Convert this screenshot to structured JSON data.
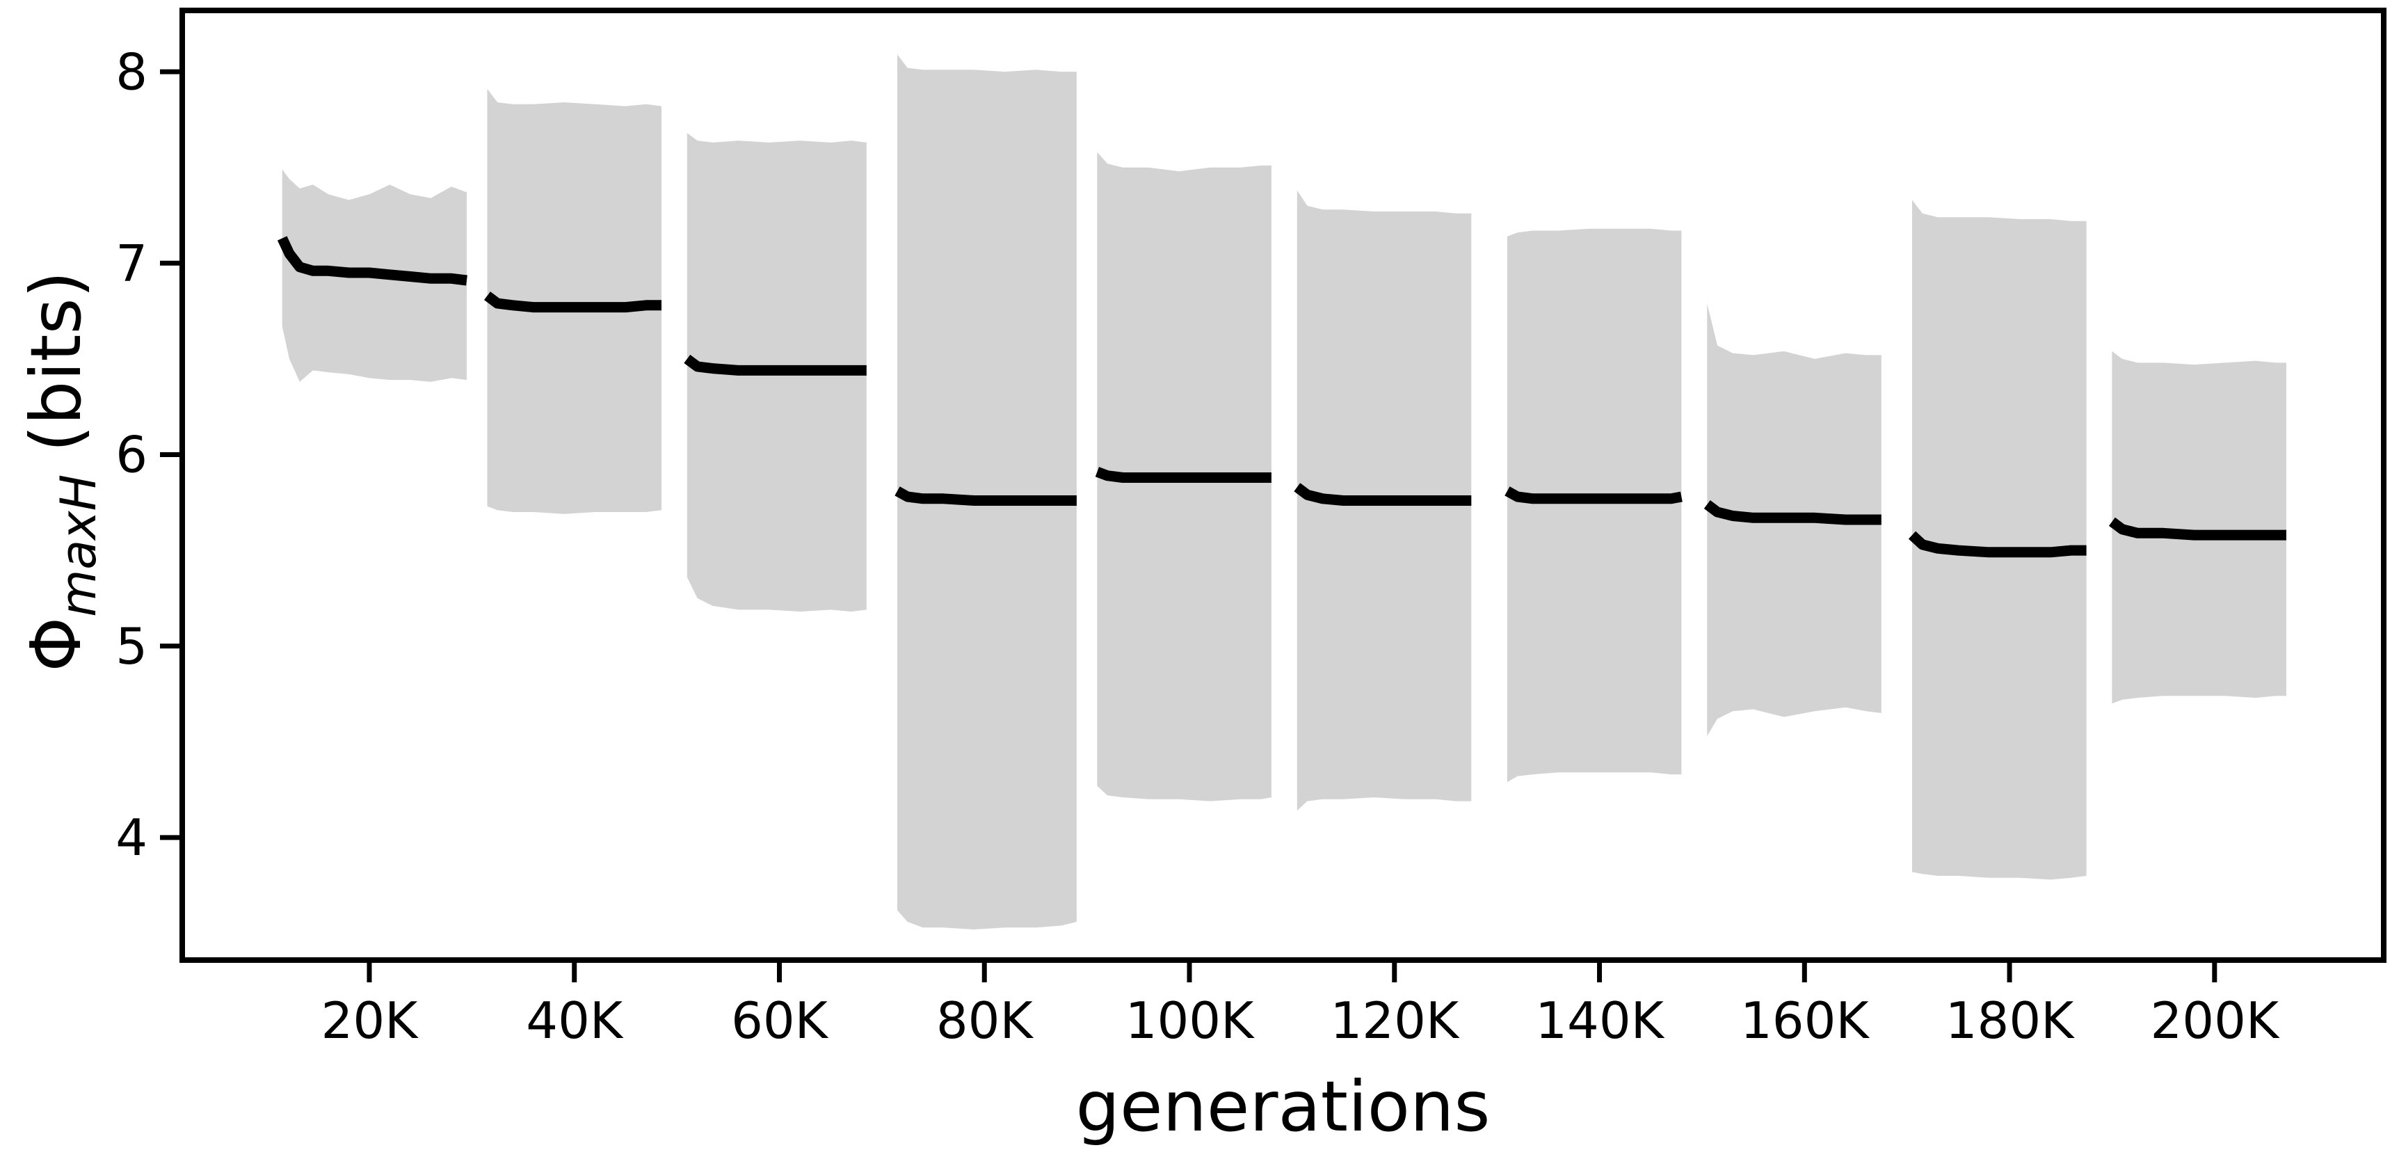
{
  "figure": {
    "background_color": "#ffffff"
  },
  "chart_data": {
    "type": "area",
    "title": "",
    "xlabel": "generations",
    "ylabel": {
      "prefix": "Φ",
      "subscript": "maxH",
      "suffix": " (bits)"
    },
    "legend": null,
    "grid": false,
    "band_color": "#d3d3d3",
    "line_color": "#000000",
    "axis_color": "#000000",
    "x_unit_note": "x values in thousands of generations",
    "xlim": [
      1.75,
      216.5
    ],
    "ylim": [
      3.36,
      8.32
    ],
    "x_ticks": [
      {
        "label": "20K",
        "value": 20
      },
      {
        "label": "40K",
        "value": 40
      },
      {
        "label": "60K",
        "value": 60
      },
      {
        "label": "80K",
        "value": 80
      },
      {
        "label": "100K",
        "value": 100
      },
      {
        "label": "120K",
        "value": 120
      },
      {
        "label": "140K",
        "value": 140
      },
      {
        "label": "160K",
        "value": 160
      },
      {
        "label": "180K",
        "value": 180
      },
      {
        "label": "200K",
        "value": 200
      }
    ],
    "y_ticks": [
      {
        "label": "4",
        "value": 4
      },
      {
        "label": "5",
        "value": 5
      },
      {
        "label": "6",
        "value": 6
      },
      {
        "label": "7",
        "value": 7
      },
      {
        "label": "8",
        "value": 8
      }
    ],
    "segments": [
      {
        "name": "band-20K",
        "x": [
          11.5,
          12.2,
          13.2,
          14.5,
          16,
          18,
          20,
          22,
          24,
          26,
          28,
          29.5
        ],
        "upper": [
          7.49,
          7.44,
          7.39,
          7.41,
          7.36,
          7.33,
          7.36,
          7.41,
          7.36,
          7.34,
          7.4,
          7.37
        ],
        "lower": [
          6.67,
          6.5,
          6.38,
          6.44,
          6.43,
          6.42,
          6.4,
          6.39,
          6.39,
          6.38,
          6.4,
          6.39
        ],
        "line": [
          7.13,
          7.05,
          6.98,
          6.96,
          6.96,
          6.95,
          6.95,
          6.94,
          6.93,
          6.92,
          6.92,
          6.91
        ]
      },
      {
        "name": "band-40K",
        "x": [
          31.5,
          32.5,
          34,
          36,
          39,
          42,
          45,
          47,
          48.5
        ],
        "upper": [
          7.91,
          7.84,
          7.83,
          7.83,
          7.84,
          7.83,
          7.82,
          7.83,
          7.82
        ],
        "lower": [
          5.73,
          5.71,
          5.7,
          5.7,
          5.69,
          5.7,
          5.7,
          5.7,
          5.71
        ],
        "line": [
          6.83,
          6.79,
          6.78,
          6.77,
          6.77,
          6.77,
          6.77,
          6.78,
          6.78
        ]
      },
      {
        "name": "band-60K",
        "x": [
          51,
          52,
          53.5,
          56,
          59,
          62,
          65,
          67,
          68.5
        ],
        "upper": [
          7.68,
          7.64,
          7.63,
          7.64,
          7.63,
          7.64,
          7.63,
          7.64,
          7.63
        ],
        "lower": [
          5.36,
          5.25,
          5.21,
          5.19,
          5.19,
          5.18,
          5.19,
          5.18,
          5.19
        ],
        "line": [
          6.5,
          6.46,
          6.45,
          6.44,
          6.44,
          6.44,
          6.44,
          6.44,
          6.44
        ]
      },
      {
        "name": "band-80K",
        "x": [
          71.5,
          72.5,
          74,
          76,
          79,
          82,
          85,
          87.5,
          89
        ],
        "upper": [
          8.09,
          8.02,
          8.01,
          8.01,
          8.01,
          8.0,
          8.01,
          8.0,
          8.0
        ],
        "lower": [
          3.62,
          3.56,
          3.53,
          3.53,
          3.52,
          3.53,
          3.53,
          3.54,
          3.56
        ],
        "line": [
          5.81,
          5.78,
          5.77,
          5.77,
          5.76,
          5.76,
          5.76,
          5.76,
          5.76
        ]
      },
      {
        "name": "band-100K",
        "x": [
          91,
          92,
          93.5,
          96,
          99,
          102,
          105,
          107,
          108
        ],
        "upper": [
          7.58,
          7.52,
          7.5,
          7.5,
          7.48,
          7.5,
          7.5,
          7.51,
          7.51
        ],
        "lower": [
          4.27,
          4.22,
          4.21,
          4.2,
          4.2,
          4.19,
          4.2,
          4.2,
          4.21
        ],
        "line": [
          5.91,
          5.89,
          5.88,
          5.88,
          5.88,
          5.88,
          5.88,
          5.88,
          5.88
        ]
      },
      {
        "name": "band-120K",
        "x": [
          110.5,
          111.5,
          113,
          115,
          118,
          121,
          124,
          126,
          127.5
        ],
        "upper": [
          7.38,
          7.3,
          7.28,
          7.28,
          7.27,
          7.27,
          7.27,
          7.26,
          7.26
        ],
        "lower": [
          4.14,
          4.19,
          4.2,
          4.2,
          4.21,
          4.2,
          4.2,
          4.19,
          4.19
        ],
        "line": [
          5.83,
          5.79,
          5.77,
          5.76,
          5.76,
          5.76,
          5.76,
          5.76,
          5.76
        ]
      },
      {
        "name": "band-140K",
        "x": [
          131,
          132,
          133.5,
          136,
          139,
          142,
          145,
          147,
          148
        ],
        "upper": [
          7.14,
          7.16,
          7.17,
          7.17,
          7.18,
          7.18,
          7.18,
          7.17,
          7.17
        ],
        "lower": [
          4.29,
          4.32,
          4.33,
          4.34,
          4.34,
          4.34,
          4.34,
          4.33,
          4.33
        ],
        "line": [
          5.81,
          5.78,
          5.77,
          5.77,
          5.77,
          5.77,
          5.77,
          5.77,
          5.78
        ]
      },
      {
        "name": "band-160K",
        "x": [
          150.5,
          151.5,
          153,
          155,
          158,
          161,
          164,
          166,
          167.5
        ],
        "upper": [
          6.79,
          6.57,
          6.53,
          6.52,
          6.54,
          6.5,
          6.53,
          6.52,
          6.52
        ],
        "lower": [
          4.53,
          4.62,
          4.66,
          4.67,
          4.63,
          4.66,
          4.68,
          4.66,
          4.65
        ],
        "line": [
          5.74,
          5.7,
          5.68,
          5.67,
          5.67,
          5.67,
          5.66,
          5.66,
          5.66
        ]
      },
      {
        "name": "band-180K",
        "x": [
          170.5,
          171.5,
          173,
          175,
          178,
          181,
          184,
          186,
          187.5
        ],
        "upper": [
          7.33,
          7.26,
          7.24,
          7.24,
          7.24,
          7.23,
          7.23,
          7.22,
          7.22
        ],
        "lower": [
          3.82,
          3.81,
          3.8,
          3.8,
          3.79,
          3.79,
          3.78,
          3.79,
          3.8
        ],
        "line": [
          5.58,
          5.53,
          5.51,
          5.5,
          5.49,
          5.49,
          5.49,
          5.5,
          5.5
        ]
      },
      {
        "name": "band-200K",
        "x": [
          190,
          191,
          192.5,
          195,
          198,
          201,
          204,
          206,
          207
        ],
        "upper": [
          6.54,
          6.5,
          6.48,
          6.48,
          6.47,
          6.48,
          6.49,
          6.48,
          6.48
        ],
        "lower": [
          4.7,
          4.72,
          4.73,
          4.74,
          4.74,
          4.74,
          4.73,
          4.74,
          4.74
        ],
        "line": [
          5.65,
          5.61,
          5.59,
          5.59,
          5.58,
          5.58,
          5.58,
          5.58,
          5.58
        ]
      }
    ]
  }
}
